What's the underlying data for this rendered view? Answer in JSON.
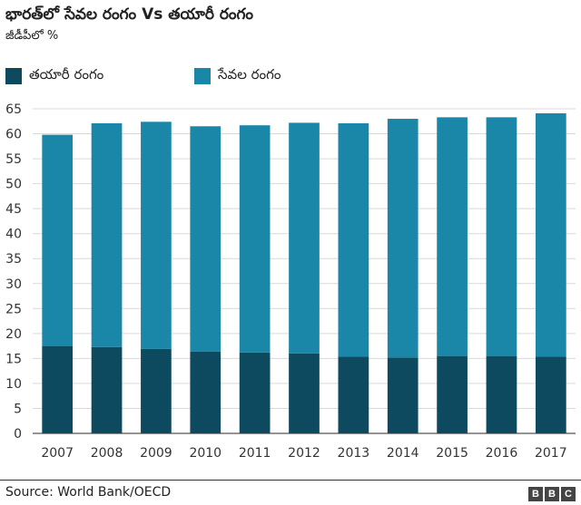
{
  "header": {
    "title": "భారత్‌లో సేవల రంగం Vs తయారీ రంగం",
    "subtitle": "జీడీపీలో %"
  },
  "legend": {
    "items": [
      {
        "label": "తయారీ రంగం",
        "color": "#0d4a5f"
      },
      {
        "label": "సేవల రంగం",
        "color": "#1a87a8"
      }
    ]
  },
  "chart_data": {
    "type": "bar",
    "stacked": true,
    "title": "భారత్‌లో సేవల రంగం Vs తయారీ రంగం",
    "subtitle": "జీడీపీలో %",
    "categories": [
      "2007",
      "2008",
      "2009",
      "2010",
      "2011",
      "2012",
      "2013",
      "2014",
      "2015",
      "2016",
      "2017"
    ],
    "series": [
      {
        "name": "తయారీ రంగం",
        "color": "#0d4a5f",
        "values": [
          17.5,
          17.3,
          16.9,
          16.4,
          16.2,
          16.0,
          15.4,
          15.2,
          15.5,
          15.5,
          15.4
        ]
      },
      {
        "name": "సేవల రంగం",
        "color": "#1a87a8",
        "values": [
          42.3,
          44.8,
          45.5,
          45.1,
          45.5,
          46.2,
          46.7,
          47.8,
          47.8,
          47.8,
          48.7
        ]
      }
    ],
    "yticks": [
      0,
      5,
      10,
      15,
      20,
      25,
      30,
      35,
      40,
      45,
      50,
      55,
      60,
      65
    ],
    "ylim": [
      0,
      65
    ],
    "xlabel": "",
    "ylabel": "",
    "grid": true,
    "legend_position": "top-left"
  },
  "footer": {
    "source": "Source: World Bank/OECD",
    "logo_letters": [
      "B",
      "B",
      "C"
    ]
  }
}
